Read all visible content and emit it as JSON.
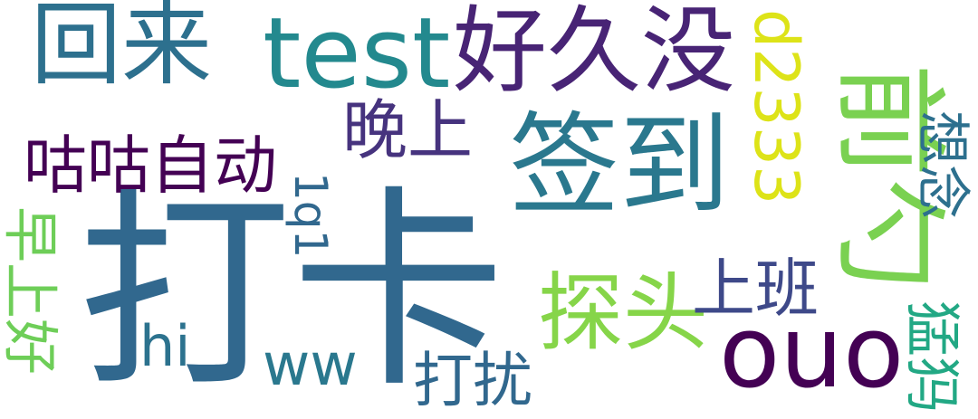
{
  "words": {
    "daka": {
      "text": "打卡",
      "color": "#31688e"
    },
    "qiandao": {
      "text": "签到",
      "color": "#2a788e"
    },
    "huilai": {
      "text": "回来",
      "color": "#2d708e"
    },
    "test": {
      "text": "test",
      "color": "#23898e"
    },
    "haojiumei": {
      "text": "好久没",
      "color": "#482475"
    },
    "gugu": {
      "text": "咕咕自动",
      "color": "#440154"
    },
    "wanshang": {
      "text": "晚上",
      "color": "#46337e"
    },
    "d2333": {
      "text": "d2333",
      "color": "#dde318"
    },
    "qianji": {
      "text": "前勺",
      "color": "#7ad151"
    },
    "xiangnian": {
      "text": "想念",
      "color": "#2d708e"
    },
    "zaoshanghao": {
      "text": "早上好",
      "color": "#6ece58"
    },
    "oneq1": {
      "text": "1q1",
      "color": "#31688e"
    },
    "hi": {
      "text": "hi",
      "color": "#2c728e"
    },
    "ww": {
      "text": "ww",
      "color": "#2a788e"
    },
    "tantou": {
      "text": "探头",
      "color": "#86d549"
    },
    "shangban": {
      "text": "上班",
      "color": "#3e4989"
    },
    "ouo": {
      "text": "ouo",
      "color": "#440154"
    },
    "darao": {
      "text": "打扰",
      "color": "#31688e"
    },
    "mengma": {
      "text": "猛犸",
      "color": "#22a884"
    }
  }
}
